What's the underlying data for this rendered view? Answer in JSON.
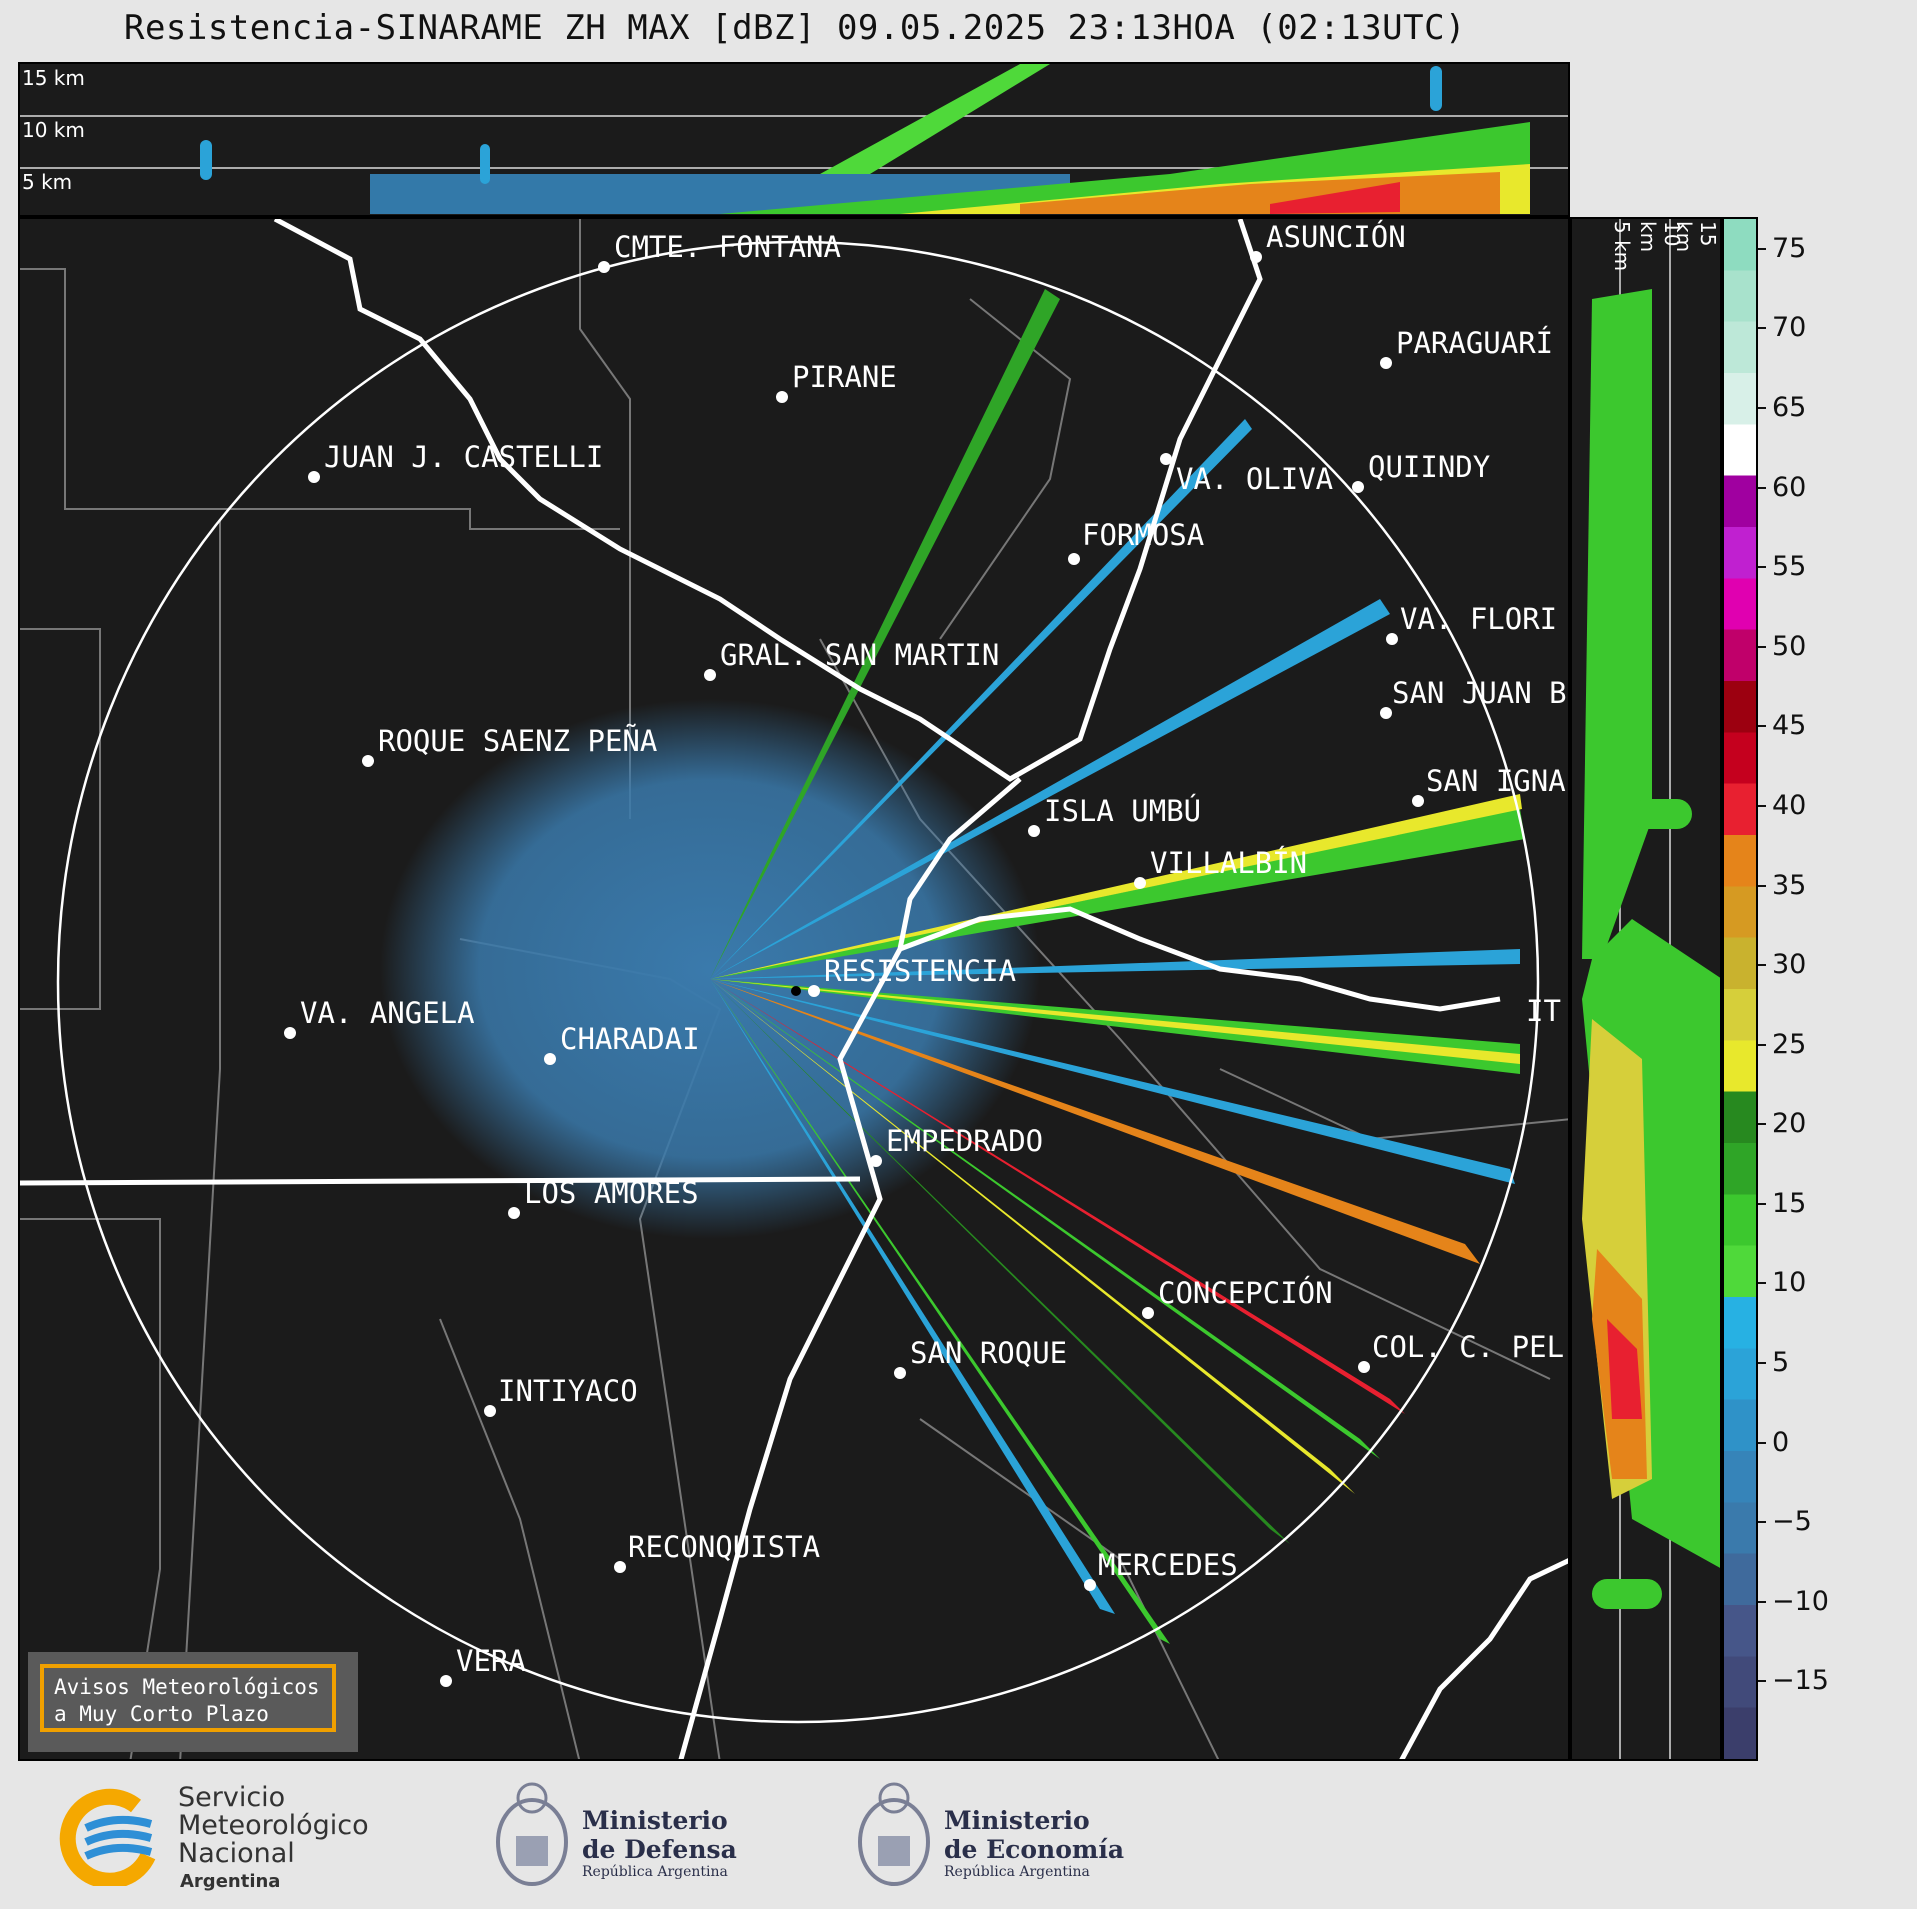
{
  "title": "Resistencia-SINARAME ZH MAX [dBZ] 09.05.2025 23:13HOA (02:13UTC)",
  "top_panel": {
    "height_labels": [
      "15 km",
      "10 km",
      "5 km"
    ]
  },
  "right_panel": {
    "height_labels": [
      "5 km",
      "10 km",
      "15 km"
    ]
  },
  "colorbar": {
    "unit": "dBZ",
    "ticks": [
      "75",
      "70",
      "65",
      "60",
      "55",
      "50",
      "45",
      "40",
      "35",
      "30",
      "25",
      "20",
      "15",
      "10",
      "5",
      "0",
      "−5",
      "−10",
      "−15"
    ],
    "range": [
      -20,
      77
    ],
    "colors": [
      "#3b3e6b",
      "#414a7a",
      "#465689",
      "#3f6a9c",
      "#3a7aac",
      "#3684b9",
      "#2f92c8",
      "#2ba3d8",
      "#27b1e3",
      "#4fd93a",
      "#3cc82e",
      "#2fa527",
      "#27891f",
      "#e8e82c",
      "#d6cf3a",
      "#c9b22e",
      "#d69a22",
      "#e5841a",
      "#e82030",
      "#c5001e",
      "#9c0010",
      "#c0006a",
      "#e000b0",
      "#c020d0",
      "#a000a0",
      "#ffffff",
      "#d8f0e8",
      "#bde8d8",
      "#a8e2cc",
      "#8edcc0"
    ]
  },
  "cities": [
    {
      "name": "CMTE. FONTANA"
    },
    {
      "name": "ASUNCIÓN"
    },
    {
      "name": "PIRANE"
    },
    {
      "name": "PARAGUARÍ"
    },
    {
      "name": "JUAN J. CASTELLI"
    },
    {
      "name": "VA. OLIVA"
    },
    {
      "name": "QUIINDY"
    },
    {
      "name": "FORMOSA"
    },
    {
      "name": "VA. FLORI"
    },
    {
      "name": "GRAL. SAN MARTIN"
    },
    {
      "name": "SAN JUAN B"
    },
    {
      "name": "ROQUE SAENZ PEÑA"
    },
    {
      "name": "SAN IGNA"
    },
    {
      "name": "ISLA UMBÚ"
    },
    {
      "name": "VILLALBÍN"
    },
    {
      "name": "RESISTENCIA"
    },
    {
      "name": "VA. ANGELA"
    },
    {
      "name": "CHARADAI"
    },
    {
      "name": "IT"
    },
    {
      "name": "EMPEDRADO"
    },
    {
      "name": "LOS AMORES"
    },
    {
      "name": "CONCEPCIÓN"
    },
    {
      "name": "COL. C. PEL"
    },
    {
      "name": "SAN ROQUE"
    },
    {
      "name": "INTIYACO"
    },
    {
      "name": "RECONQUISTA"
    },
    {
      "name": "MERCEDES"
    },
    {
      "name": "VERA"
    }
  ],
  "warning": {
    "line1": "Avisos Meteorológicos",
    "line2": "a Muy Corto Plazo"
  },
  "logos": {
    "smn": {
      "line1": "Servicio",
      "line2": "Meteorológico",
      "line3": "Nacional",
      "line4": "Argentina"
    },
    "defensa": {
      "line1": "Ministerio",
      "line2": "de Defensa",
      "line3": "República Argentina"
    },
    "economia": {
      "line1": "Ministerio",
      "line2": "de Economía",
      "line3": "República Argentina"
    }
  }
}
